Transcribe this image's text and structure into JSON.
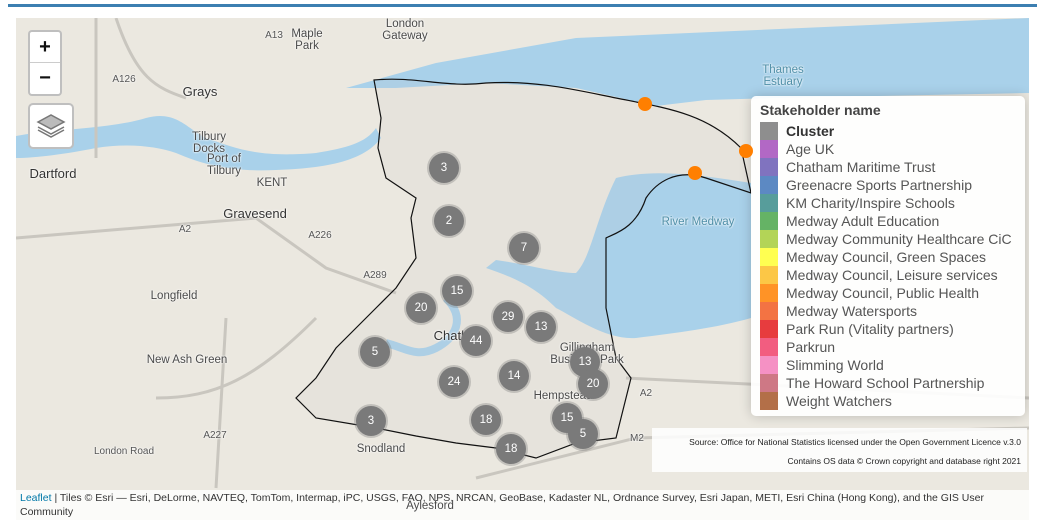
{
  "zoom": {
    "in": "+",
    "out": "−"
  },
  "places": [
    "London Gateway",
    "Maple Park",
    "Grays",
    "Tilbury Docks",
    "Port of Tilbury",
    "Dartford",
    "KENT",
    "Gravesend",
    "Longfield",
    "New Ash Green",
    "Thames Estuary",
    "River Medway",
    "Chatham",
    "Gillingham Business Park",
    "Hempstead",
    "Snodland",
    "Aylesford"
  ],
  "roads": [
    "A13",
    "A126",
    "A2",
    "A226",
    "A289",
    "A227",
    "London Road",
    "M2",
    "A2"
  ],
  "clusters": [
    "3",
    "2",
    "7",
    "15",
    "20",
    "29",
    "13",
    "44",
    "5",
    "13",
    "14",
    "24",
    "20",
    "18",
    "15",
    "3",
    "5",
    "18"
  ],
  "legend": {
    "title": "Stakeholder name",
    "items": [
      {
        "name": "Cluster",
        "color": "#7a7a7a"
      },
      {
        "name": "Age UK",
        "color": "#a44dbb"
      },
      {
        "name": "Chatham Maritime Trust",
        "color": "#6a5bb4"
      },
      {
        "name": "Greenacre Sports Partnership",
        "color": "#3f74b8"
      },
      {
        "name": "KM Charity/Inspire Schools",
        "color": "#3a8c8a"
      },
      {
        "name": "Medway Adult Education",
        "color": "#4aa64a"
      },
      {
        "name": "Medway Community Healthcare CiC",
        "color": "#a6cc3a"
      },
      {
        "name": "Medway Council, Green Spaces",
        "color": "#ffff33"
      },
      {
        "name": "Medway Council, Leisure services",
        "color": "#fbbd26"
      },
      {
        "name": "Medway Council, Public Health",
        "color": "#ff8000"
      },
      {
        "name": "Medway Watersports",
        "color": "#f15a22"
      },
      {
        "name": "Park Run (Vitality partners)",
        "color": "#e31a1c"
      },
      {
        "name": "Parkrun",
        "color": "#f0416a"
      },
      {
        "name": "Slimming World",
        "color": "#f37eba"
      },
      {
        "name": "The Howard School Partnership",
        "color": "#c66070"
      },
      {
        "name": "Weight Watchers",
        "color": "#a65628"
      }
    ]
  },
  "source": [
    "Source: Office for National Statistics licensed under the Open Government Licence v.3.0",
    "Contains OS data © Crown copyright and database right 2021"
  ],
  "attribution": {
    "link": "Leaflet",
    "text": " | Tiles © Esri — Esri, DeLorme, NAVTEQ, TomTom, Intermap, iPC, USGS, FAO, NPS, NRCAN, GeoBase, Kadaster NL, Ordnance Survey, Esri Japan, METI, Esri China (Hong Kong), and the GIS User Community"
  }
}
